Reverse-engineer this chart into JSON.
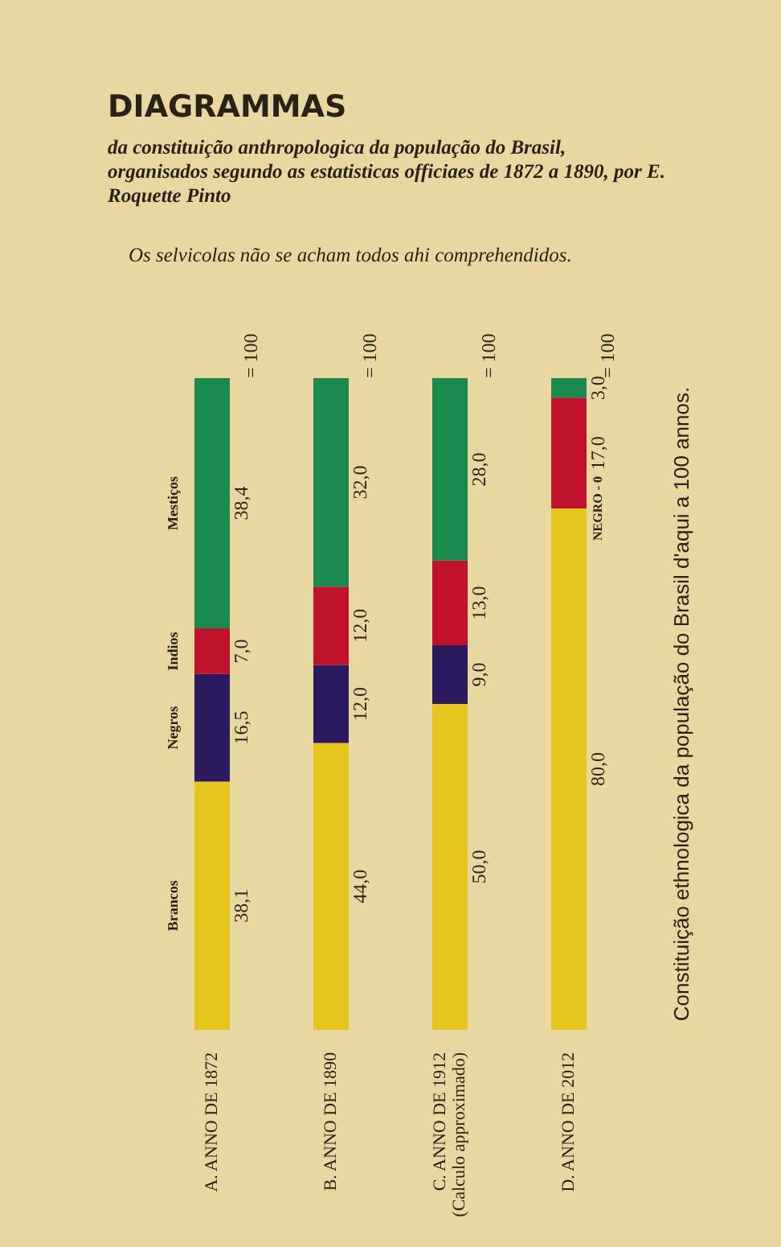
{
  "chart_data": {
    "type": "bar",
    "stacked": true,
    "title": "DIAGRAMMAS",
    "subtitle": "da constituição anthropologica da população do Brasil, organisados segundo as estatisticas officiaes de 1872 a 1890, por E. Roquette Pinto",
    "annotations": [
      "Os selvicolas não se acham todos ahi comprehendidos.",
      "Constituição ethnologica da população do Brasil d'aqui a 100 annos.",
      {
        "text": "NEGRO - 0",
        "x": "D. ANNO DE 2012",
        "y": 80
      }
    ],
    "categories": [
      "A. ANNO DE 1872",
      "B. ANNO DE 1890",
      "C. ANNO DE 1912\n(Calculo approximado)",
      "D. ANNO DE 2012"
    ],
    "series": [
      {
        "name": "Brancos",
        "color": "#e6c51c",
        "values": [
          38.1,
          44.0,
          50.0,
          80.0
        ],
        "value_labels": [
          "38,1",
          "44,0",
          "50,0",
          "80,0"
        ]
      },
      {
        "name": "Negros",
        "color": "#2c1a5e",
        "values": [
          16.5,
          12.0,
          9.0,
          0
        ],
        "value_labels": [
          "16,5",
          "12,0",
          "9,0",
          null
        ]
      },
      {
        "name": "Indios",
        "color": "#c0122c",
        "values": [
          7.0,
          12.0,
          13.0,
          17.0
        ],
        "value_labels": [
          "7,0",
          "12,0",
          "13,0",
          "17,0"
        ]
      },
      {
        "name": "Mestiços",
        "color": "#1b8a4f",
        "values": [
          38.4,
          32.0,
          28.0,
          3.0
        ],
        "value_labels": [
          "38,4",
          "32,0",
          "28,0",
          "3,0"
        ]
      }
    ],
    "totals": [
      "= 100",
      "= 100",
      "= 100",
      "= 100"
    ],
    "tick_labels": "x",
    "legend": false,
    "grid": false
  }
}
